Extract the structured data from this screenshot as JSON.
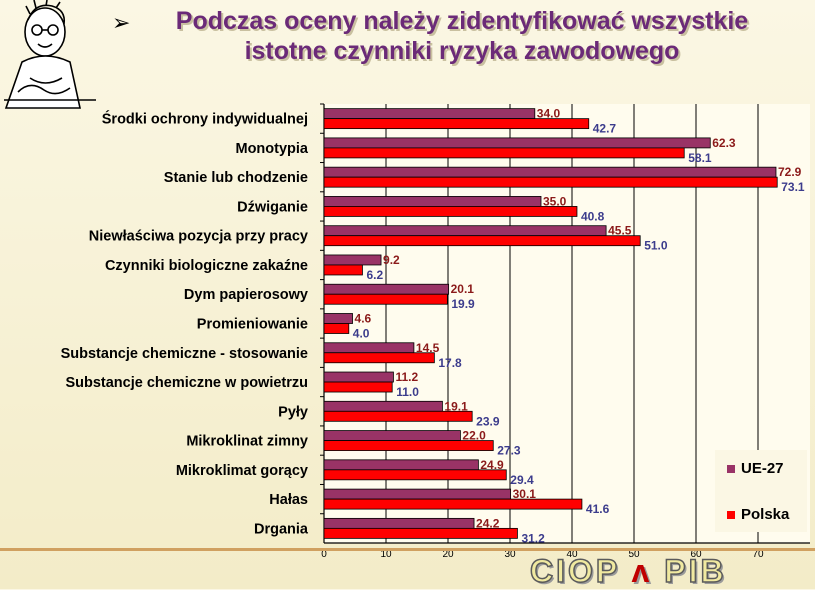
{
  "title": {
    "bullet": "➢",
    "line1": "Podczas oceny należy zidentyfikować wszystkie",
    "line2": "istotne czynniki ryzyka zawodowego"
  },
  "logo": {
    "left": "CIOP",
    "right": "PIB"
  },
  "colors": {
    "ue27": "#993366",
    "polska": "#ff0000",
    "background": "#fbf7e4"
  },
  "chart_data": {
    "type": "bar",
    "orientation": "horizontal",
    "categories": [
      "Środki ochrony indywidualnej",
      "Monotypia",
      "Stanie lub chodzenie",
      "Dźwiganie",
      "Niewłaściwa pozycja przy pracy",
      "Czynniki biologiczne zakaźne",
      "Dym papierosowy",
      "Promieniowanie",
      "Substancje chemiczne - stosowanie",
      "Substancje chemiczne w powietrzu",
      "Pyły",
      "Mikroklinat zimny",
      "Mikroklimat gorący",
      "Hałas",
      "Drgania"
    ],
    "series": [
      {
        "name": "UE-27",
        "color": "#993366",
        "values": [
          34.0,
          62.3,
          72.9,
          35.0,
          45.5,
          9.2,
          20.1,
          4.6,
          14.5,
          11.2,
          19.1,
          22.0,
          24.9,
          30.1,
          24.2
        ],
        "labels": [
          "34.0",
          "62.3",
          "72.9",
          "35.0",
          "45.5",
          "9.2",
          "20.1",
          "4.6",
          "14.5",
          "11.2",
          "19.1",
          "22.0",
          "24.9",
          "30.1",
          "24.2"
        ]
      },
      {
        "name": "Polska",
        "color": "#ff0000",
        "values": [
          42.7,
          58.1,
          73.1,
          40.8,
          51.0,
          6.2,
          19.9,
          4.0,
          17.8,
          11.0,
          23.9,
          27.3,
          29.4,
          41.6,
          31.2
        ],
        "labels": [
          "42.7",
          "58.1",
          "73.1",
          "40.8",
          "51.0",
          "6.2",
          "19.9",
          "4.0",
          "17.8",
          "11.0",
          "23.9",
          "27.3",
          "29.4",
          "41.6",
          "31.2"
        ]
      }
    ],
    "xlim": [
      0,
      80
    ],
    "xticks": [
      0,
      10,
      20,
      30,
      40,
      50,
      60,
      70
    ],
    "xtick_labels": [
      "0",
      "10",
      "20",
      "30",
      "40",
      "50",
      "60",
      "70"
    ],
    "grid": true,
    "legend_position": "bottom-right"
  }
}
